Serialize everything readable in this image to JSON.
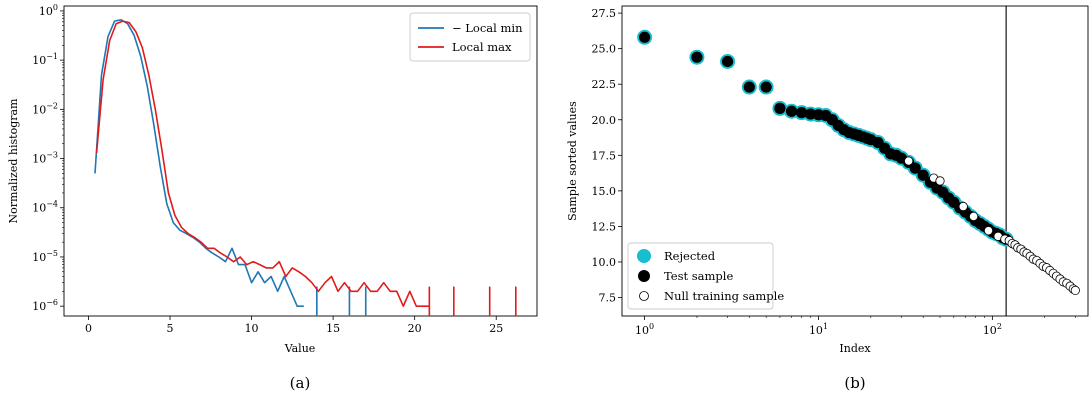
{
  "chart_data": [
    {
      "type": "line",
      "caption": "(a)",
      "xlabel": "Value",
      "ylabel": "Normalized histogram",
      "xlim": [
        -1.5,
        27.5
      ],
      "ylim_log10": [
        -6.2,
        0.1
      ],
      "yscale": "log",
      "x_ticks": [
        0,
        5,
        10,
        15,
        20,
        25
      ],
      "y_ticks": [
        "10^0",
        "10^-1",
        "10^-2",
        "10^-3",
        "10^-4",
        "10^-5",
        "10^-6"
      ],
      "legend": {
        "position": "top-right"
      },
      "series": [
        {
          "name": "− Local min",
          "color": "#1f77b4",
          "x": [
            0.4,
            0.8,
            1.2,
            1.6,
            2.0,
            2.4,
            2.8,
            3.2,
            3.6,
            4.0,
            4.4,
            4.8,
            5.2,
            5.6,
            6.0,
            6.4,
            6.8,
            7.2,
            7.6,
            8.0,
            8.4,
            8.8,
            9.2,
            9.6,
            10.0,
            10.4,
            10.8,
            11.2,
            11.6,
            12.0,
            12.4,
            12.8,
            13.2
          ],
          "y": [
            0.0005,
            0.05,
            0.3,
            0.62,
            0.66,
            0.55,
            0.32,
            0.12,
            0.03,
            0.005,
            0.0007,
            0.00012,
            5e-05,
            3.5e-05,
            3e-05,
            2.5e-05,
            2e-05,
            1.5e-05,
            1.2e-05,
            1e-05,
            8e-06,
            1.5e-05,
            7e-06,
            7e-06,
            3e-06,
            5e-06,
            3e-06,
            4e-06,
            2e-06,
            4e-06,
            2e-06,
            1e-06,
            1e-06
          ],
          "spikes": [
            14.0,
            16.0,
            17.0
          ],
          "spike_y": 2.5e-06
        },
        {
          "name": "Local max",
          "color": "#e31a1c",
          "x": [
            0.5,
            0.9,
            1.3,
            1.7,
            2.1,
            2.5,
            2.9,
            3.3,
            3.7,
            4.1,
            4.5,
            4.9,
            5.3,
            5.7,
            6.1,
            6.5,
            6.9,
            7.3,
            7.7,
            8.1,
            8.5,
            8.9,
            9.3,
            9.7,
            10.1,
            10.5,
            10.9,
            11.3,
            11.7,
            12.1,
            12.5,
            12.9,
            13.3,
            13.7,
            14.1,
            14.5,
            14.9,
            15.3,
            15.7,
            16.1,
            16.5,
            16.9,
            17.3,
            17.7,
            18.1,
            18.5,
            18.9,
            19.3,
            19.7,
            20.1,
            20.5,
            20.9
          ],
          "y": [
            0.0013,
            0.04,
            0.25,
            0.55,
            0.62,
            0.58,
            0.38,
            0.18,
            0.05,
            0.01,
            0.0015,
            0.0002,
            7e-05,
            4e-05,
            3e-05,
            2.5e-05,
            2e-05,
            1.5e-05,
            1.5e-05,
            1.2e-05,
            1e-05,
            8e-06,
            1e-05,
            7e-06,
            8e-06,
            7e-06,
            6e-06,
            6e-06,
            8e-06,
            4e-06,
            6e-06,
            5e-06,
            4e-06,
            3e-06,
            2e-06,
            3e-06,
            4e-06,
            2e-06,
            3e-06,
            2e-06,
            2e-06,
            3e-06,
            2e-06,
            2e-06,
            3e-06,
            2e-06,
            2e-06,
            1e-06,
            2e-06,
            1e-06,
            1e-06,
            1e-06
          ],
          "spikes": [
            20.9,
            22.4,
            24.6,
            26.2
          ],
          "spike_y": 2.5e-06
        }
      ]
    },
    {
      "type": "scatter",
      "caption": "(b)",
      "xlabel": "Index",
      "ylabel": "Sample sorted values",
      "xscale": "log",
      "xlim_log10": [
        -0.13,
        2.55
      ],
      "ylim": [
        6.2,
        28.0
      ],
      "x_ticks": [
        "10^0",
        "10^1",
        "10^2"
      ],
      "y_ticks": [
        7.5,
        10.0,
        12.5,
        15.0,
        17.5,
        20.0,
        22.5,
        25.0,
        27.5
      ],
      "vline_x": 120,
      "legend": {
        "position": "bottom-left"
      },
      "series": [
        {
          "name": "Rejected",
          "color": "#17becf"
        },
        {
          "name": "Test sample",
          "color": "#000000"
        },
        {
          "name": "Null training sample",
          "color": "#ffffff",
          "edge": "#000000"
        }
      ],
      "main_points": {
        "x": [
          1,
          2,
          3,
          4,
          5,
          6,
          7,
          8,
          9,
          10,
          11,
          12,
          13,
          14,
          15,
          16,
          17,
          18,
          19,
          20,
          22,
          24,
          26,
          28,
          30,
          33,
          36,
          40,
          44,
          48,
          52,
          56,
          60,
          65,
          70,
          75,
          80,
          85,
          90,
          95,
          100,
          105,
          110,
          115,
          120
        ],
        "y": [
          25.8,
          24.4,
          24.1,
          22.3,
          22.3,
          20.8,
          20.6,
          20.5,
          20.4,
          20.35,
          20.3,
          20.0,
          19.6,
          19.3,
          19.1,
          19.0,
          18.9,
          18.8,
          18.7,
          18.6,
          18.4,
          18.0,
          17.6,
          17.5,
          17.3,
          17.0,
          16.6,
          16.1,
          15.6,
          15.2,
          14.9,
          14.5,
          14.2,
          13.8,
          13.5,
          13.2,
          12.9,
          12.7,
          12.5,
          12.3,
          12.1,
          12.0,
          11.9,
          11.7,
          11.6
        ]
      },
      "null_points": {
        "x": [
          33,
          46,
          50,
          68,
          78,
          95,
          108,
          118,
          125,
          130,
          135,
          140,
          146,
          152,
          158,
          165,
          172,
          180,
          188,
          196,
          205,
          214,
          224,
          234,
          245,
          256,
          268,
          280,
          292,
          300
        ],
        "y": [
          17.1,
          15.9,
          15.7,
          13.9,
          13.2,
          12.2,
          11.8,
          11.6,
          11.5,
          11.3,
          11.2,
          11.0,
          10.9,
          10.7,
          10.6,
          10.4,
          10.2,
          10.1,
          9.9,
          9.7,
          9.6,
          9.4,
          9.2,
          9.0,
          8.8,
          8.6,
          8.5,
          8.3,
          8.1,
          8.0
        ]
      }
    }
  ]
}
